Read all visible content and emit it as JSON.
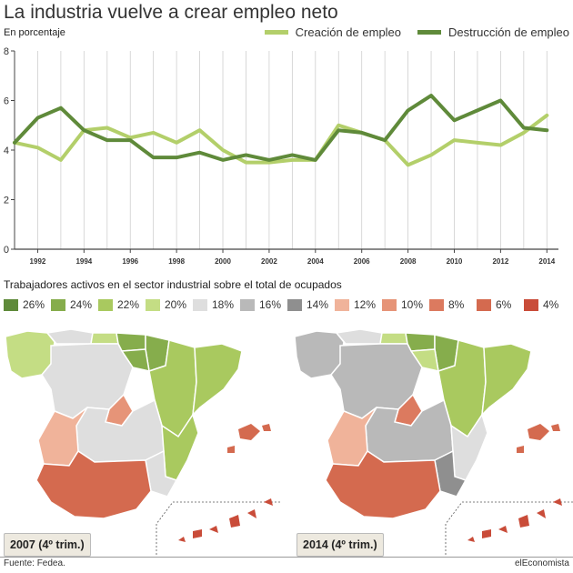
{
  "header": {
    "title": "La industria vuelve a crear empleo neto",
    "unit": "En porcentaje"
  },
  "colors": {
    "creacion": "#b3cf6a",
    "destruccion": "#5f8a3a",
    "grid": "#cfcfcf",
    "axis": "#444444"
  },
  "chart_data": [
    {
      "type": "line",
      "title": "La industria vuelve a crear empleo neto",
      "ylabel": "En porcentaje",
      "xlabel": "",
      "ylim": [
        0,
        8
      ],
      "xlim": [
        1991,
        2014.5
      ],
      "yticks": [
        0,
        2,
        4,
        6,
        8
      ],
      "xticks": [
        "1992",
        "1994",
        "1996",
        "1998",
        "2000",
        "2002",
        "2004",
        "2006",
        "2008",
        "2010",
        "2012",
        "2014"
      ],
      "grid": "vertical",
      "legend": "top-right",
      "series": [
        {
          "name": "Creación de empleo",
          "x": [
            1991,
            1992,
            1993,
            1994,
            1995,
            1996,
            1997,
            1998,
            1999,
            2000,
            2001,
            2002,
            2003,
            2004,
            2005,
            2006,
            2007,
            2008,
            2009,
            2010,
            2011,
            2012,
            2013,
            2014
          ],
          "values": [
            4.3,
            4.1,
            3.6,
            4.8,
            4.9,
            4.5,
            4.7,
            4.3,
            4.8,
            4.0,
            3.5,
            3.5,
            3.6,
            3.6,
            5.0,
            4.7,
            4.4,
            3.4,
            3.8,
            4.4,
            4.3,
            4.2,
            4.7,
            5.4
          ]
        },
        {
          "name": "Destrucción de empleo",
          "x": [
            1991,
            1992,
            1993,
            1994,
            1995,
            1996,
            1997,
            1998,
            1999,
            2000,
            2001,
            2002,
            2003,
            2004,
            2005,
            2006,
            2007,
            2008,
            2009,
            2010,
            2011,
            2012,
            2013,
            2014
          ],
          "values": [
            4.3,
            5.3,
            5.7,
            4.8,
            4.4,
            4.4,
            3.7,
            3.7,
            3.9,
            3.6,
            3.8,
            3.6,
            3.8,
            3.6,
            4.8,
            4.7,
            4.4,
            5.6,
            6.2,
            5.2,
            5.6,
            6.0,
            4.9,
            4.8
          ]
        }
      ]
    }
  ],
  "section2": {
    "title": "Trabajadores activos en el sector industrial sobre el total de ocupados"
  },
  "scale": [
    {
      "label": "26%",
      "color": "#5f8a3a"
    },
    {
      "label": "24%",
      "color": "#86ad4c"
    },
    {
      "label": "22%",
      "color": "#a9c95f"
    },
    {
      "label": "20%",
      "color": "#c4dd84"
    },
    {
      "label": "18%",
      "color": "#dedede"
    },
    {
      "label": "16%",
      "color": "#b9b9b9"
    },
    {
      "label": "14%",
      "color": "#8f8f8f"
    },
    {
      "label": "12%",
      "color": "#f0b39a"
    },
    {
      "label": "10%",
      "color": "#e69478"
    },
    {
      "label": "8%",
      "color": "#dc7a5f"
    },
    {
      "label": "6%",
      "color": "#d46a4f"
    },
    {
      "label": "4%",
      "color": "#c94c39"
    }
  ],
  "maps": [
    {
      "label": "2007 (4º trim.)"
    },
    {
      "label": "2014 (4º trim.)"
    }
  ],
  "footer": {
    "source": "Fuente: Fedea.",
    "brand": "elEconomista"
  }
}
